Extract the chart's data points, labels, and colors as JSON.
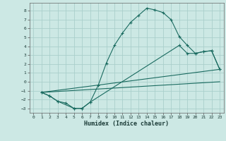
{
  "xlabel": "Humidex (Indice chaleur)",
  "bg_color": "#cce8e4",
  "grid_color": "#aacfcb",
  "line_color": "#1a6b60",
  "xlim": [
    -0.5,
    23.5
  ],
  "ylim": [
    -3.5,
    8.9
  ],
  "xticks": [
    0,
    1,
    2,
    3,
    4,
    5,
    6,
    7,
    8,
    9,
    10,
    11,
    12,
    13,
    14,
    15,
    16,
    17,
    18,
    19,
    20,
    21,
    22,
    23
  ],
  "yticks": [
    -3,
    -2,
    -1,
    0,
    1,
    2,
    3,
    4,
    5,
    6,
    7,
    8
  ],
  "curve1_x": [
    1,
    2,
    3,
    4,
    5,
    6,
    7,
    8,
    9,
    10,
    11,
    12,
    13,
    14,
    15,
    16,
    17,
    18,
    19,
    20,
    21,
    22,
    23
  ],
  "curve1_y": [
    -1.2,
    -1.6,
    -2.2,
    -2.4,
    -3.0,
    -3.0,
    -2.3,
    -0.4,
    2.1,
    4.1,
    5.5,
    6.7,
    7.5,
    8.3,
    8.1,
    7.8,
    7.0,
    5.1,
    4.1,
    3.2,
    3.4,
    3.5,
    1.4
  ],
  "curve2_x": [
    1,
    2,
    3,
    5,
    6,
    7,
    18,
    19,
    20,
    21,
    22,
    23
  ],
  "curve2_y": [
    -1.2,
    -1.6,
    -2.2,
    -3.0,
    -3.0,
    -2.3,
    4.1,
    3.2,
    3.2,
    3.4,
    3.5,
    1.4
  ],
  "line1_x": [
    1,
    23
  ],
  "line1_y": [
    -1.2,
    1.4
  ],
  "line2_x": [
    1,
    23
  ],
  "line2_y": [
    -1.2,
    0.0
  ]
}
